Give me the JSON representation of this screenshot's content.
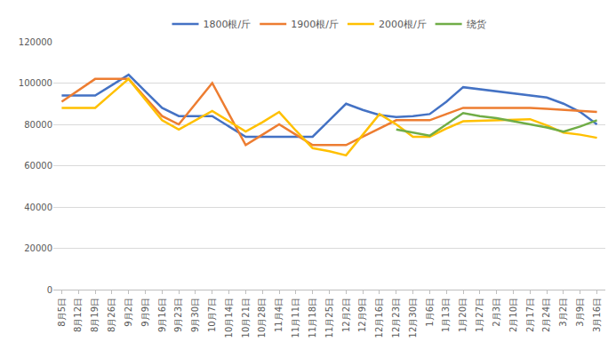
{
  "chart_data": {
    "type": "line",
    "categories": [
      "8月5日",
      "8月12日",
      "8月19日",
      "8月26日",
      "9月2日",
      "9月9日",
      "9月16日",
      "9月23日",
      "9月30日",
      "10月7日",
      "10月14日",
      "10月21日",
      "10月28日",
      "11月4日",
      "11月11日",
      "11月18日",
      "11月25日",
      "12月2日",
      "12月9日",
      "12月16日",
      "12月23日",
      "12月30日",
      "1月6日",
      "1月13日",
      "1月20日",
      "1月27日",
      "2月3日",
      "2月10日",
      "2月17日",
      "2月24日",
      "3月2日",
      "3月9日",
      "3月16日"
    ],
    "series": [
      {
        "name": "1800根/斤",
        "color": "#4472c4",
        "values": [
          94000,
          94000,
          94000,
          99000,
          104000,
          96000,
          88000,
          84000,
          84000,
          84000,
          79000,
          74000,
          74000,
          74000,
          74000,
          74000,
          82000,
          90000,
          87000,
          84500,
          83500,
          84000,
          85000,
          91000,
          98000,
          97000,
          96000,
          95000,
          94000,
          93000,
          90000,
          86000,
          80000
        ]
      },
      {
        "name": "1900根/斤",
        "color": "#ed7d31",
        "values": [
          91000,
          96500,
          102000,
          102000,
          102000,
          93000,
          84000,
          80000,
          90000,
          100000,
          85000,
          70000,
          75000,
          80000,
          75000,
          70000,
          70000,
          70000,
          74000,
          78000,
          82000,
          82000,
          82000,
          85000,
          88000,
          88000,
          88000,
          88000,
          88000,
          87500,
          87000,
          86500,
          86000
        ]
      },
      {
        "name": "2000根/斤",
        "color": "#ffc000",
        "values": [
          88000,
          88000,
          88000,
          95000,
          102000,
          92000,
          82000,
          77500,
          82000,
          86500,
          81500,
          76500,
          81000,
          86000,
          77000,
          68500,
          67000,
          65000,
          75000,
          85000,
          80000,
          74000,
          74000,
          78000,
          81500,
          81800,
          82000,
          82200,
          82500,
          79500,
          76000,
          75000,
          73500
        ]
      },
      {
        "name": "绕货",
        "color": "#70ad47",
        "values": [
          null,
          null,
          null,
          null,
          null,
          null,
          null,
          null,
          null,
          null,
          null,
          null,
          null,
          null,
          null,
          null,
          null,
          null,
          null,
          null,
          77500,
          76000,
          74500,
          80000,
          85500,
          84000,
          83000,
          81500,
          80000,
          78500,
          76500,
          79000,
          82000
        ]
      }
    ],
    "ylim": [
      0,
      120000
    ],
    "yticks": [
      0,
      20000,
      40000,
      60000,
      80000,
      100000,
      120000
    ],
    "grid": true,
    "legend": "top"
  }
}
